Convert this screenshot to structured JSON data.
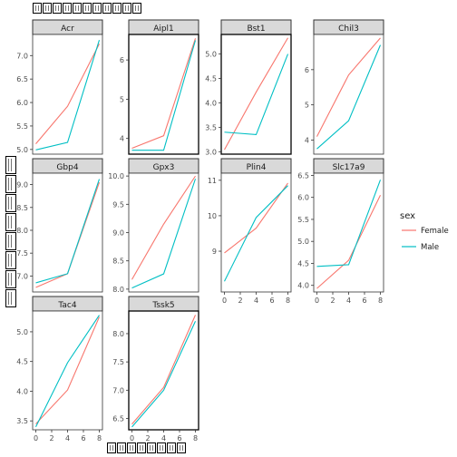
{
  "chart_data": {
    "type": "line",
    "facet": "gene",
    "title_glyphs": 11,
    "ylabel_glyphs": 8,
    "xlabel_glyphs": 8,
    "x_ticks": [
      0,
      2,
      4,
      6,
      8
    ],
    "x_range": [
      0,
      8
    ],
    "legend": {
      "title": "sex",
      "placement": "right",
      "entries": [
        {
          "label": "Female",
          "color": "#F8766D"
        },
        {
          "label": "Male",
          "color": "#00BFC4"
        }
      ]
    },
    "panels": [
      {
        "name": "Acr",
        "ylim": [
          4.9,
          7.45
        ],
        "yticks": [
          "5.0",
          "5.5",
          "6.0",
          "6.5",
          "7.0"
        ],
        "yvals": [
          5.0,
          5.5,
          6.0,
          6.5,
          7.0
        ],
        "show_x_axis": false,
        "highlight": false,
        "series": [
          {
            "name": "Female",
            "x": [
              0,
              4,
              8
            ],
            "y": [
              5.12,
              5.92,
              7.25
            ]
          },
          {
            "name": "Male",
            "x": [
              0,
              4,
              8
            ],
            "y": [
              4.99,
              5.15,
              7.33
            ]
          }
        ]
      },
      {
        "name": "Aipl1",
        "ylim": [
          3.6,
          6.65
        ],
        "yticks": [
          "4",
          "5",
          "6"
        ],
        "yvals": [
          4,
          5,
          6
        ],
        "show_x_axis": false,
        "highlight": true,
        "series": [
          {
            "name": "Female",
            "x": [
              0,
              4,
              8
            ],
            "y": [
              3.75,
              4.07,
              6.55
            ]
          },
          {
            "name": "Male",
            "x": [
              0,
              4,
              8
            ],
            "y": [
              3.7,
              3.7,
              6.5
            ]
          }
        ]
      },
      {
        "name": "Bst1",
        "ylim": [
          2.95,
          5.4
        ],
        "yticks": [
          "3.0",
          "3.5",
          "4.0",
          "4.5",
          "5.0"
        ],
        "yvals": [
          3.0,
          3.5,
          4.0,
          4.5,
          5.0
        ],
        "show_x_axis": false,
        "highlight": true,
        "series": [
          {
            "name": "Female",
            "x": [
              0,
              4,
              8
            ],
            "y": [
              3.04,
              4.22,
              5.33
            ]
          },
          {
            "name": "Male",
            "x": [
              0,
              4,
              8
            ],
            "y": [
              3.4,
              3.35,
              5.0
            ]
          }
        ]
      },
      {
        "name": "Chil3",
        "ylim": [
          3.6,
          7.0
        ],
        "yticks": [
          "4",
          "5",
          "6"
        ],
        "yvals": [
          4,
          5,
          6
        ],
        "show_x_axis": false,
        "highlight": false,
        "series": [
          {
            "name": "Female",
            "x": [
              0,
              4,
              8
            ],
            "y": [
              4.1,
              5.85,
              6.9
            ]
          },
          {
            "name": "Male",
            "x": [
              0,
              4,
              8
            ],
            "y": [
              3.75,
              4.55,
              6.7
            ]
          }
        ]
      },
      {
        "name": "Gbp4",
        "ylim": [
          6.65,
          9.25
        ],
        "yticks": [
          "7.0",
          "7.5",
          "8.0",
          "8.5",
          "9.0"
        ],
        "yvals": [
          7.0,
          7.5,
          8.0,
          8.5,
          9.0
        ],
        "show_x_axis": false,
        "highlight": false,
        "series": [
          {
            "name": "Female",
            "x": [
              0,
              4,
              8
            ],
            "y": [
              6.75,
              7.05,
              9.05
            ]
          },
          {
            "name": "Male",
            "x": [
              0,
              4,
              8
            ],
            "y": [
              6.85,
              7.05,
              9.12
            ]
          }
        ]
      },
      {
        "name": "Gpx3",
        "ylim": [
          7.95,
          10.05
        ],
        "yticks": [
          "8.0",
          "8.5",
          "9.0",
          "9.5",
          "10.0"
        ],
        "yvals": [
          8.0,
          8.5,
          9.0,
          9.5,
          10.0
        ],
        "show_x_axis": false,
        "highlight": false,
        "series": [
          {
            "name": "Female",
            "x": [
              0,
              4,
              8
            ],
            "y": [
              8.17,
              9.15,
              10.0
            ]
          },
          {
            "name": "Male",
            "x": [
              0,
              4,
              8
            ],
            "y": [
              8.02,
              8.27,
              9.95
            ]
          }
        ]
      },
      {
        "name": "Plin4",
        "ylim": [
          7.85,
          11.2
        ],
        "yticks": [
          "9",
          "10",
          "11"
        ],
        "yvals": [
          9,
          10,
          11
        ],
        "show_x_axis": true,
        "highlight": false,
        "series": [
          {
            "name": "Female",
            "x": [
              0,
              4,
              8
            ],
            "y": [
              8.95,
              9.65,
              10.92
            ]
          },
          {
            "name": "Male",
            "x": [
              0,
              4,
              8
            ],
            "y": [
              8.15,
              9.95,
              10.85
            ]
          }
        ]
      },
      {
        "name": "Slc17a9",
        "ylim": [
          3.85,
          6.55
        ],
        "yticks": [
          "4.0",
          "4.5",
          "5.0",
          "5.5",
          "6.0",
          "6.5"
        ],
        "yvals": [
          4.0,
          4.5,
          5.0,
          5.5,
          6.0,
          6.5
        ],
        "show_x_axis": true,
        "highlight": false,
        "series": [
          {
            "name": "Female",
            "x": [
              0,
              4,
              8
            ],
            "y": [
              3.93,
              4.57,
              6.05
            ]
          },
          {
            "name": "Male",
            "x": [
              0,
              4,
              8
            ],
            "y": [
              4.43,
              4.47,
              6.4
            ]
          }
        ]
      },
      {
        "name": "Tac4",
        "ylim": [
          3.35,
          5.35
        ],
        "yticks": [
          "3.5",
          "4.0",
          "4.5",
          "5.0"
        ],
        "yvals": [
          3.5,
          4.0,
          4.5,
          5.0
        ],
        "show_x_axis": true,
        "highlight": false,
        "series": [
          {
            "name": "Female",
            "x": [
              0,
              4,
              8
            ],
            "y": [
              3.45,
              4.02,
              5.25
            ]
          },
          {
            "name": "Male",
            "x": [
              0,
              4,
              8
            ],
            "y": [
              3.4,
              4.48,
              5.28
            ]
          }
        ]
      },
      {
        "name": "Tssk5",
        "ylim": [
          6.3,
          8.4
        ],
        "yticks": [
          "6.5",
          "7.0",
          "7.5",
          "8.0"
        ],
        "yvals": [
          6.5,
          7.0,
          7.5,
          8.0
        ],
        "show_x_axis": true,
        "highlight": true,
        "series": [
          {
            "name": "Female",
            "x": [
              0,
              4,
              8
            ],
            "y": [
              6.4,
              7.05,
              8.33
            ]
          },
          {
            "name": "Male",
            "x": [
              0,
              4,
              8
            ],
            "y": [
              6.35,
              7.0,
              8.22
            ]
          }
        ]
      }
    ]
  }
}
